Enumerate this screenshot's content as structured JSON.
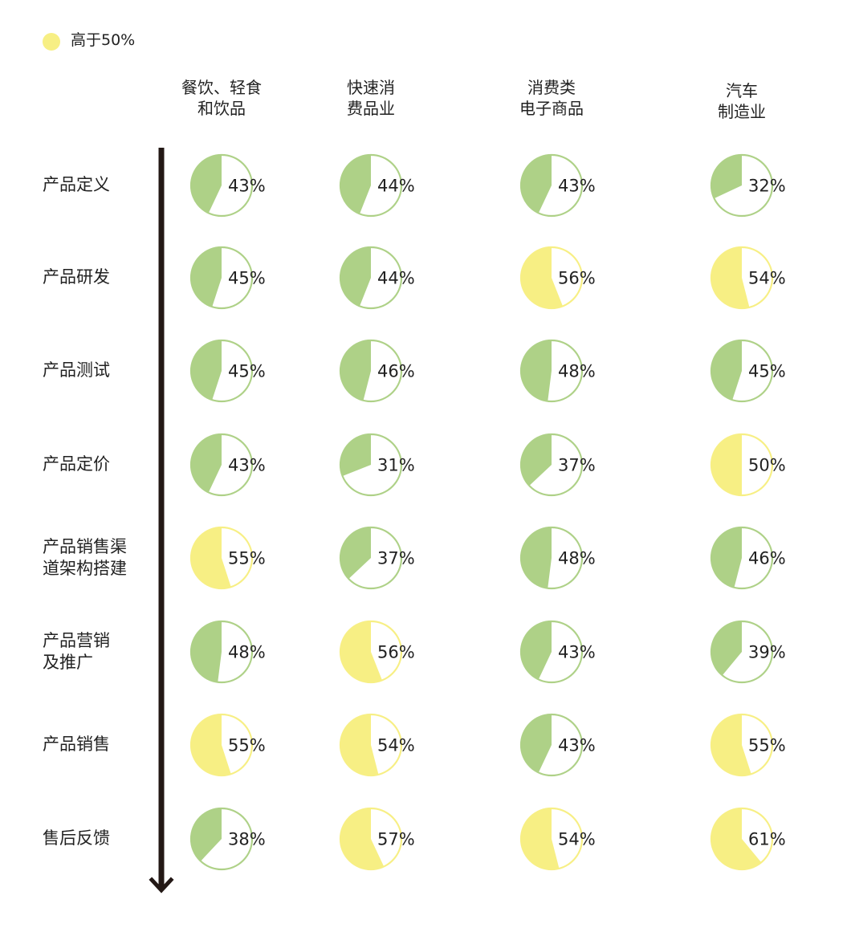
{
  "legend": {
    "label": "高于50%",
    "color": "#f7ef84"
  },
  "colors": {
    "below_threshold": "#aed187",
    "above_threshold": "#f7ef84",
    "arrow": "#231815",
    "text": "#222222"
  },
  "chart_data": {
    "type": "pie",
    "threshold": 50,
    "unit": "%",
    "columns": [
      {
        "name_lines": [
          "餐饮、轻食",
          "和饮品"
        ]
      },
      {
        "name_lines": [
          "快速消",
          "费品业"
        ]
      },
      {
        "name_lines": [
          "消费类",
          "电子商品"
        ]
      },
      {
        "name_lines": [
          "汽车",
          "制造业"
        ]
      }
    ],
    "rows": [
      {
        "name_lines": [
          "产品定义"
        ],
        "values": [
          43,
          44,
          43,
          32
        ]
      },
      {
        "name_lines": [
          "产品研发"
        ],
        "values": [
          45,
          44,
          56,
          54
        ]
      },
      {
        "name_lines": [
          "产品测试"
        ],
        "values": [
          45,
          46,
          48,
          45
        ]
      },
      {
        "name_lines": [
          "产品定价"
        ],
        "values": [
          43,
          31,
          37,
          50
        ]
      },
      {
        "name_lines": [
          "产品销售渠",
          "道架构搭建"
        ],
        "values": [
          55,
          37,
          48,
          46
        ]
      },
      {
        "name_lines": [
          "产品营销",
          "及推广"
        ],
        "values": [
          48,
          56,
          43,
          39
        ]
      },
      {
        "name_lines": [
          "产品销售"
        ],
        "values": [
          55,
          54,
          43,
          55
        ]
      },
      {
        "name_lines": [
          "售后反馈"
        ],
        "values": [
          38,
          57,
          54,
          61
        ]
      }
    ]
  }
}
